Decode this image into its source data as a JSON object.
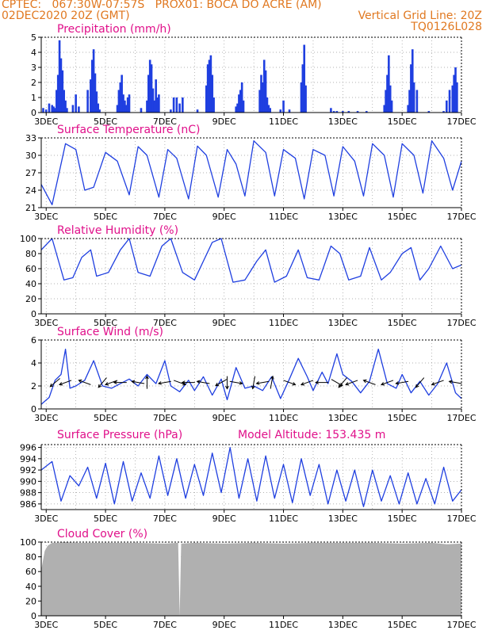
{
  "header": {
    "line1": "CPTEC:   067:30W-07:57S   PROX01: BOCA DO ACRE (AM)",
    "line2_left": "02DEC2020 20Z (GMT)",
    "line2_right": "Vertical Grid Line: 20Z",
    "line3_right": "TQ0126L028"
  },
  "colors": {
    "series": "#1f3fe0",
    "cloud": "#b0b0b0",
    "title": "#e0108a",
    "header": "#e07820"
  },
  "x_ticks": [
    "3DEC",
    "5DEC",
    "7DEC",
    "9DEC",
    "11DEC",
    "13DEC",
    "15DEC",
    "17DEC"
  ],
  "chart_data": [
    {
      "id": "precip",
      "type": "bar",
      "title": "Precipitation (mm/h)",
      "ylim": [
        0,
        5
      ],
      "yticks": [
        0,
        1,
        2,
        3,
        4,
        5
      ],
      "x_range_days": [
        2.833,
        17.0
      ],
      "x": [
        2.9,
        3.0,
        3.1,
        3.2,
        3.25,
        3.3,
        3.35,
        3.4,
        3.45,
        3.5,
        3.55,
        3.6,
        3.65,
        3.7,
        3.9,
        4.0,
        4.1,
        4.4,
        4.5,
        4.55,
        4.6,
        4.65,
        4.7,
        4.75,
        4.8,
        5.4,
        5.45,
        5.5,
        5.55,
        5.6,
        5.65,
        5.7,
        5.75,
        5.8,
        6.2,
        6.4,
        6.45,
        6.5,
        6.55,
        6.6,
        6.65,
        6.7,
        6.75,
        6.8,
        7.2,
        7.3,
        7.4,
        7.5,
        7.6,
        8.1,
        8.4,
        8.45,
        8.5,
        8.55,
        8.6,
        8.65,
        9.4,
        9.45,
        9.5,
        9.55,
        9.6,
        9.65,
        10.2,
        10.25,
        10.3,
        10.35,
        10.4,
        10.45,
        10.5,
        10.55,
        10.9,
        11.0,
        11.2,
        11.6,
        11.65,
        11.7,
        11.75,
        12.6,
        12.7,
        12.8,
        13.0,
        13.2,
        13.5,
        13.8,
        14.4,
        14.45,
        14.5,
        14.55,
        14.6,
        14.65,
        15.2,
        15.25,
        15.3,
        15.35,
        15.4,
        15.5,
        15.9,
        16.4,
        16.5,
        16.6,
        16.7,
        16.75,
        16.8,
        16.85
      ],
      "values": [
        0.3,
        0.2,
        0.6,
        0.5,
        0.4,
        0.3,
        1.5,
        2.5,
        4.8,
        3.6,
        2.8,
        1.5,
        0.8,
        0.3,
        0.5,
        1.2,
        0.4,
        1.5,
        2.2,
        3.5,
        4.2,
        2.6,
        1.4,
        0.6,
        0.2,
        0.5,
        1.5,
        2.0,
        2.5,
        1.2,
        0.8,
        0.5,
        1.0,
        1.2,
        0.3,
        0.8,
        2.5,
        3.5,
        3.2,
        1.6,
        0.8,
        2.2,
        1.0,
        1.2,
        0.2,
        1.0,
        1.0,
        0.6,
        1.0,
        0.2,
        1.8,
        3.2,
        3.5,
        3.8,
        2.5,
        1.0,
        0.4,
        0.6,
        1.2,
        1.5,
        2.0,
        0.8,
        1.5,
        2.5,
        2.0,
        3.5,
        2.8,
        1.0,
        0.5,
        0.3,
        0.2,
        0.8,
        0.2,
        2.0,
        3.2,
        4.5,
        1.8,
        0.3,
        0.1,
        0.1,
        0.1,
        0.1,
        0.1,
        0.1,
        0.5,
        1.5,
        2.5,
        3.8,
        1.8,
        0.8,
        0.5,
        1.5,
        3.2,
        4.2,
        2.0,
        1.5,
        0.1,
        0.1,
        0.8,
        1.5,
        1.8,
        2.5,
        3.0,
        2.0
      ]
    },
    {
      "id": "temp",
      "type": "line",
      "title": "Surface Temperature (nC)",
      "ylim": [
        21,
        33
      ],
      "yticks": [
        21,
        24,
        27,
        30,
        33
      ],
      "x": [
        2.833,
        3.2,
        3.65,
        4.0,
        4.3,
        4.6,
        5.0,
        5.4,
        5.8,
        6.1,
        6.4,
        6.8,
        7.1,
        7.4,
        7.8,
        8.1,
        8.4,
        8.8,
        9.1,
        9.4,
        9.7,
        10.0,
        10.4,
        10.7,
        11.0,
        11.4,
        11.7,
        12.0,
        12.4,
        12.7,
        13.0,
        13.4,
        13.7,
        14.0,
        14.4,
        14.7,
        15.0,
        15.4,
        15.7,
        16.0,
        16.4,
        16.7,
        17.0
      ],
      "values": [
        25,
        21.5,
        32,
        31,
        24,
        24.5,
        30.5,
        29,
        23.2,
        31.5,
        30,
        22.8,
        31,
        29.5,
        22.5,
        31.6,
        30,
        22.8,
        31,
        28.5,
        23,
        32.5,
        30.5,
        23,
        31,
        29.5,
        22.5,
        31,
        30,
        23,
        31.5,
        29,
        23,
        32,
        30,
        22.8,
        32,
        30,
        23.5,
        32.5,
        29.5,
        24,
        29
      ]
    },
    {
      "id": "rh",
      "type": "line",
      "title": "Relative Humidity (%)",
      "ylim": [
        0,
        100
      ],
      "yticks": [
        0,
        20,
        40,
        60,
        80,
        100
      ],
      "x": [
        2.833,
        3.2,
        3.6,
        3.9,
        4.2,
        4.5,
        4.7,
        5.1,
        5.5,
        5.8,
        6.1,
        6.5,
        6.9,
        7.2,
        7.6,
        8.0,
        8.3,
        8.6,
        8.9,
        9.3,
        9.7,
        10.1,
        10.4,
        10.7,
        11.1,
        11.5,
        11.8,
        12.2,
        12.6,
        12.9,
        13.2,
        13.6,
        13.9,
        14.3,
        14.6,
        15.0,
        15.3,
        15.6,
        15.9,
        16.3,
        16.7,
        17.0
      ],
      "values": [
        85,
        100,
        45,
        48,
        75,
        85,
        50,
        55,
        85,
        100,
        55,
        50,
        90,
        100,
        55,
        45,
        70,
        95,
        100,
        42,
        45,
        70,
        85,
        42,
        50,
        85,
        48,
        45,
        90,
        80,
        45,
        50,
        88,
        45,
        55,
        80,
        88,
        45,
        60,
        90,
        60,
        65
      ]
    },
    {
      "id": "wind",
      "type": "line",
      "title": "Surface Wind (m/s)",
      "ylim": [
        0,
        6
      ],
      "yticks": [
        0,
        2,
        4,
        6
      ],
      "x": [
        2.833,
        3.1,
        3.3,
        3.5,
        3.65,
        3.8,
        4.0,
        4.3,
        4.6,
        4.9,
        5.2,
        5.5,
        5.8,
        6.1,
        6.4,
        6.7,
        7.0,
        7.2,
        7.5,
        7.8,
        8.0,
        8.3,
        8.6,
        8.9,
        9.1,
        9.4,
        9.7,
        10.0,
        10.3,
        10.6,
        10.9,
        11.2,
        11.5,
        11.8,
        12.0,
        12.3,
        12.5,
        12.8,
        13.0,
        13.3,
        13.6,
        13.9,
        14.2,
        14.5,
        14.8,
        15.0,
        15.3,
        15.6,
        15.9,
        16.2,
        16.5,
        16.8,
        17.0
      ],
      "values": [
        0.4,
        1.0,
        2.5,
        3.0,
        5.2,
        1.8,
        2.0,
        2.5,
        4.2,
        2.0,
        1.8,
        2.2,
        2.6,
        2.0,
        3.0,
        2.2,
        4.2,
        2.0,
        1.5,
        2.5,
        1.6,
        2.8,
        1.2,
        2.6,
        0.8,
        3.6,
        1.8,
        2.0,
        1.6,
        2.8,
        0.9,
        2.6,
        4.4,
        2.8,
        1.6,
        3.2,
        2.2,
        4.8,
        3.0,
        2.4,
        1.4,
        2.4,
        5.2,
        2.2,
        1.8,
        3.0,
        1.4,
        2.4,
        1.2,
        2.2,
        4.0,
        1.4,
        0.9
      ],
      "arrows_x": [
        3.3,
        3.65,
        4.3,
        4.9,
        5.2,
        5.5,
        6.1,
        6.4,
        7.0,
        7.5,
        7.8,
        8.3,
        8.9,
        9.1,
        9.4,
        10.0,
        10.3,
        10.6,
        11.2,
        11.8,
        12.3,
        12.8,
        13.0,
        13.3,
        13.9,
        14.5,
        15.0,
        15.6,
        16.2,
        16.8
      ],
      "arrows_angle": [
        220,
        200,
        160,
        230,
        200,
        180,
        170,
        90,
        190,
        340,
        180,
        170,
        210,
        270,
        350,
        260,
        190,
        80,
        340,
        200,
        180,
        330,
        230,
        200,
        160,
        200,
        190,
        230,
        200,
        170
      ]
    },
    {
      "id": "pres",
      "type": "line",
      "title": "Surface Pressure (hPa)",
      "annotation": "Model Altitude: 153.435 m",
      "ylim": [
        985,
        996.5
      ],
      "yticks": [
        986,
        988,
        990,
        992,
        994,
        996
      ],
      "x": [
        2.833,
        3.2,
        3.5,
        3.8,
        4.1,
        4.4,
        4.7,
        5.0,
        5.3,
        5.6,
        5.9,
        6.2,
        6.5,
        6.8,
        7.1,
        7.4,
        7.7,
        8.0,
        8.3,
        8.6,
        8.9,
        9.2,
        9.5,
        9.8,
        10.1,
        10.4,
        10.7,
        11.0,
        11.3,
        11.6,
        11.9,
        12.2,
        12.5,
        12.8,
        13.1,
        13.4,
        13.7,
        14.0,
        14.3,
        14.6,
        14.9,
        15.2,
        15.5,
        15.8,
        16.1,
        16.4,
        16.7,
        17.0
      ],
      "values": [
        992,
        993.5,
        986.5,
        991,
        989.2,
        992.5,
        987,
        993.2,
        986,
        993.5,
        986.5,
        991.5,
        987,
        994.5,
        987.5,
        994,
        987,
        993,
        987.5,
        995,
        988,
        996,
        987,
        994,
        986.5,
        994.5,
        987,
        993,
        986.2,
        994,
        987.5,
        993,
        986,
        992,
        986.5,
        992,
        985.5,
        992,
        986.5,
        991,
        986,
        991.5,
        986,
        990.5,
        986,
        992.5,
        986.5,
        988.5
      ]
    },
    {
      "id": "cloud",
      "type": "area",
      "title": "Cloud Cover (%)",
      "ylim": [
        0,
        100
      ],
      "yticks": [
        0,
        20,
        40,
        60,
        80,
        100
      ],
      "x": [
        2.833,
        2.95,
        3.05,
        3.2,
        3.35,
        3.6,
        4.0,
        5.0,
        6.0,
        7.0,
        7.45,
        7.5,
        7.55,
        8.0,
        9.0,
        10.0,
        11.0,
        12.0,
        13.0,
        14.0,
        15.0,
        16.0,
        16.5,
        17.0
      ],
      "values": [
        62,
        88,
        95,
        99,
        99,
        100,
        99,
        99,
        99,
        98,
        99,
        0,
        98,
        99,
        98,
        99,
        98,
        99,
        99,
        99,
        98,
        99,
        97,
        98
      ]
    }
  ]
}
